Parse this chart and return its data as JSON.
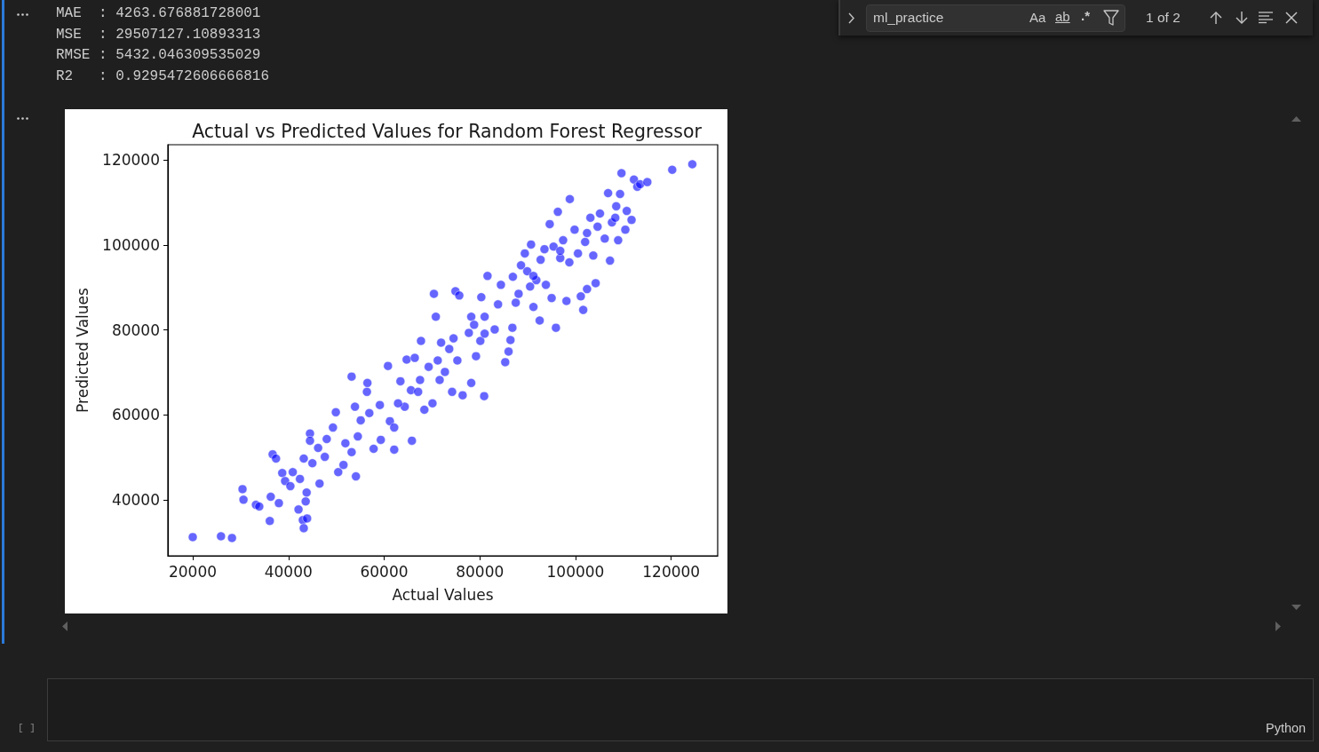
{
  "chart_data": {
    "type": "scatter",
    "title": "Actual vs Predicted Values for Random Forest Regressor",
    "xlabel": "Actual Values",
    "ylabel": "Predicted Values",
    "color": "#0000ff",
    "marker": "circle",
    "xlim": [
      14800,
      129700
    ],
    "ylim": [
      26800,
      123600
    ],
    "xticks": [
      20000,
      40000,
      60000,
      80000,
      100000,
      120000
    ],
    "yticks": [
      40000,
      60000,
      80000,
      100000,
      120000
    ],
    "x": [
      20000,
      25900,
      28200,
      30400,
      30600,
      33200,
      33900,
      36100,
      36300,
      36700,
      37400,
      38000,
      38700,
      39300,
      40400,
      40900,
      42100,
      42400,
      43000,
      43200,
      43900,
      43600,
      43800,
      44500,
      44500,
      46500,
      43200,
      45000,
      46200,
      47600,
      48000,
      49300,
      49900,
      50400,
      51500,
      51900,
      53200,
      54100,
      54500,
      53200,
      53900,
      55100,
      56400,
      56500,
      56900,
      57800,
      59300,
      59100,
      60800,
      61200,
      62100,
      62100,
      63400,
      64300,
      64700,
      65800,
      65600,
      66400,
      67500,
      67700,
      68400,
      69300,
      70100,
      70400,
      70800,
      71600,
      71900,
      72700,
      74200,
      73600,
      74900,
      75700,
      75300,
      76400,
      78200,
      77700,
      78200,
      79200,
      80100,
      80900,
      80300,
      81600,
      81000,
      83100,
      83800,
      84400,
      85300,
      86000,
      86400,
      86800,
      86900,
      87500,
      88100,
      88600,
      89400,
      89900,
      90500,
      90700,
      91200,
      91800,
      92500,
      92700,
      93500,
      93800,
      94600,
      95000,
      95400,
      95900,
      96300,
      96800,
      97400,
      98100,
      98700,
      98800,
      99800,
      100500,
      101100,
      101600,
      102000,
      102400,
      103100,
      103700,
      104200,
      104600,
      105100,
      106100,
      106800,
      107200,
      107600,
      108500,
      108900,
      109300,
      109600,
      110400,
      110700,
      111700,
      112200,
      112900,
      113500,
      115000,
      120200,
      124400,
      62900,
      67100,
      71200,
      74500,
      78800,
      81000,
      91200,
      96800,
      102400,
      108300
    ],
    "values": [
      31200,
      31400,
      31000,
      42500,
      40000,
      38800,
      38400,
      35000,
      40700,
      50700,
      49700,
      39200,
      46300,
      44400,
      43200,
      46500,
      37700,
      44900,
      35200,
      33300,
      35600,
      39600,
      41700,
      55600,
      53900,
      43800,
      49700,
      48600,
      52200,
      50100,
      54300,
      57000,
      60600,
      46500,
      48200,
      53300,
      51200,
      45500,
      54900,
      69000,
      61900,
      58700,
      65400,
      67500,
      60400,
      52000,
      54100,
      62300,
      71500,
      58500,
      51800,
      57000,
      67900,
      61900,
      73000,
      53900,
      65800,
      73400,
      68200,
      77400,
      61200,
      71300,
      62700,
      88500,
      83100,
      68200,
      77000,
      70100,
      65400,
      75500,
      89100,
      88100,
      72800,
      64600,
      67500,
      79300,
      83100,
      73800,
      77400,
      64400,
      87700,
      92700,
      83100,
      80100,
      86000,
      90600,
      72400,
      74900,
      77600,
      80500,
      92500,
      86400,
      88500,
      95200,
      98000,
      93800,
      90200,
      100100,
      85400,
      91700,
      82200,
      96500,
      99000,
      90600,
      104900,
      87500,
      99600,
      80500,
      107800,
      96900,
      101100,
      86800,
      95900,
      110800,
      103600,
      98000,
      87900,
      84700,
      100700,
      89600,
      106400,
      97500,
      91000,
      104300,
      107400,
      101500,
      112200,
      96300,
      105300,
      109100,
      101100,
      112000,
      116900,
      103600,
      108000,
      105900,
      115400,
      113700,
      114300,
      114800,
      117700,
      119000,
      62700,
      65400,
      72800,
      78000,
      81200,
      79100,
      92700,
      98600,
      102800,
      106400
    ],
    "annotations": [
      "MAE  : 4263.676881728001",
      "MSE  : 29507127.10893313",
      "RMSE : 5432.046309535029",
      "R2   : 0.9295472606666816",
      "ml_practice",
      "Aa",
      "ab",
      ".*",
      "1 of 2",
      "[ ]",
      "Python"
    ]
  }
}
